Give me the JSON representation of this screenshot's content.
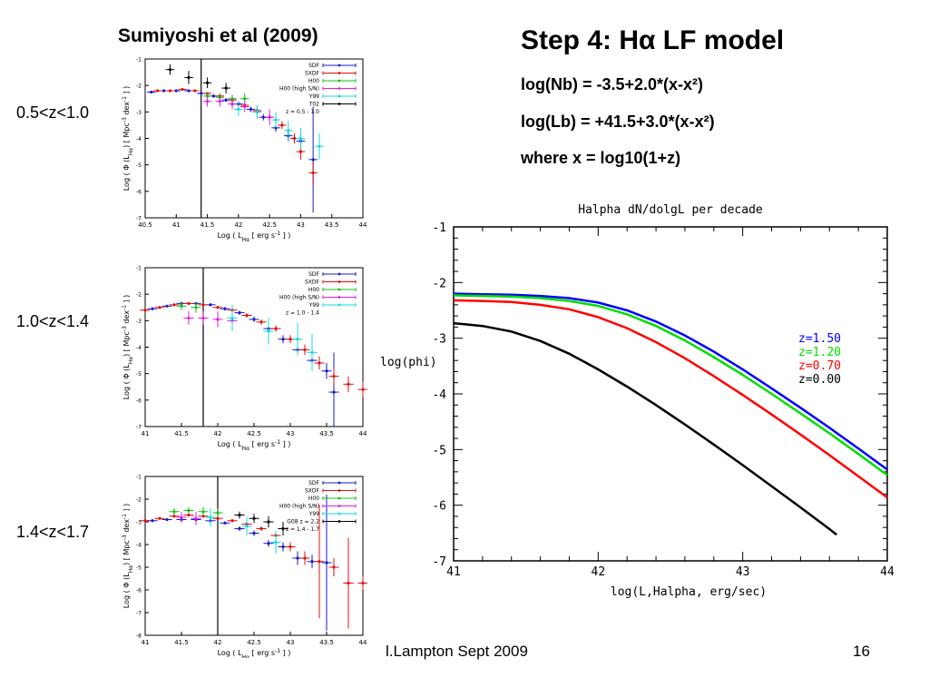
{
  "slide": {
    "left_title": "Sumiyoshi et al (2009)",
    "right_title": "Step 4: Hα LF model",
    "equations": [
      "log(Nb) = -3.5+2.0*(x-x²)",
      "log(Lb) = +41.5+3.0*(x-x²)",
      "where x = log10(1+z)"
    ],
    "z_labels": [
      "0.5<z<1.0",
      "1.0<z<1.4",
      "1.4<z<1.7"
    ],
    "footer_left": "l.Lampton Sept 2009",
    "footer_right": "16"
  },
  "chart_data": [
    {
      "type": "scatter",
      "xlabel": "Log ( L_Hα [ erg s^-1 ] )",
      "ylabel": "Log ( Φ (L_Hα) [ Mpc^-3 dex^-1 ] )",
      "xlim": [
        40.5,
        44
      ],
      "ylim": [
        -7,
        -1
      ],
      "xticks": [
        "40.5",
        "41",
        "41.5",
        "42",
        "42.5",
        "43",
        "43.5",
        "44"
      ],
      "yticks": [
        "-1",
        "-2",
        "-3",
        "-4",
        "-5",
        "-6",
        "-7"
      ],
      "cut_x": 41.4,
      "legend": [
        "SDF",
        "SXDF",
        "H00",
        "H00 (high S/N)",
        "Y99",
        "T02",
        "z = 0.5 - 1.0"
      ],
      "colors": {
        "SDF": "#1a1acc",
        "SXDF": "#e01010",
        "H00": "#18c018",
        "H00 (high S/N)": "#e020e0",
        "Y99": "#18d8e0",
        "T02": "#000000"
      },
      "series": [
        {
          "name": "SDF",
          "x": [
            40.6,
            40.8,
            41.0,
            41.2,
            41.4,
            41.6,
            41.8,
            42.0,
            42.2,
            42.4,
            42.6,
            42.8,
            43.0,
            43.2
          ],
          "y": [
            -2.25,
            -2.2,
            -2.2,
            -2.2,
            -2.3,
            -2.4,
            -2.55,
            -2.7,
            -2.9,
            -3.2,
            -3.6,
            -3.9,
            -4.1,
            -4.8
          ],
          "err": [
            0.05,
            0.05,
            0.05,
            0.05,
            0.05,
            0.06,
            0.07,
            0.08,
            0.1,
            0.12,
            0.15,
            0.2,
            0.25,
            2.0
          ]
        },
        {
          "name": "SXDF",
          "x": [
            40.7,
            40.9,
            41.1,
            41.3,
            41.5,
            41.7,
            41.9,
            42.1,
            42.3,
            42.5,
            42.7,
            42.9,
            43.0,
            43.2
          ],
          "y": [
            -2.2,
            -2.2,
            -2.15,
            -2.2,
            -2.3,
            -2.4,
            -2.55,
            -2.75,
            -2.95,
            -3.2,
            -3.5,
            -4.0,
            -4.5,
            -5.3
          ],
          "err": [
            0.05,
            0.05,
            0.05,
            0.05,
            0.05,
            0.06,
            0.07,
            0.08,
            0.1,
            0.12,
            0.15,
            0.2,
            0.3,
            0.4
          ]
        },
        {
          "name": "H00",
          "x": [
            41.5,
            41.7,
            41.9,
            42.1
          ],
          "y": [
            -2.4,
            -2.45,
            -2.5,
            -2.5
          ],
          "err": [
            0.15,
            0.15,
            0.15,
            0.2
          ]
        },
        {
          "name": "H00 (high S/N)",
          "x": [
            41.5,
            41.7,
            41.9,
            42.1,
            42.3,
            42.5
          ],
          "y": [
            -2.6,
            -2.6,
            -2.7,
            -2.8,
            -3.0,
            -3.2
          ],
          "err": [
            0.2,
            0.2,
            0.2,
            0.2,
            0.25,
            0.3
          ]
        },
        {
          "name": "Y99",
          "x": [
            42.0,
            42.3,
            42.6,
            42.8,
            43.0,
            43.3
          ],
          "y": [
            -2.9,
            -3.0,
            -3.3,
            -3.7,
            -4.0,
            -4.3
          ],
          "err": [
            0.25,
            0.25,
            0.3,
            0.35,
            0.4,
            0.5
          ]
        },
        {
          "name": "T02",
          "x": [
            40.9,
            41.2,
            41.5,
            41.8
          ],
          "y": [
            -1.4,
            -1.7,
            -1.9,
            -2.1
          ],
          "err": [
            0.2,
            0.25,
            0.2,
            0.2
          ]
        }
      ]
    },
    {
      "type": "scatter",
      "xlabel": "Log ( L_Hα [ erg s^-1 ] )",
      "ylabel": "Log ( Φ (L_Hα) [ Mpc^-3 dex^-1 ] )",
      "xlim": [
        41,
        44
      ],
      "ylim": [
        -7,
        -1
      ],
      "xticks": [
        "41",
        "41.5",
        "42",
        "42.5",
        "43",
        "43.5",
        "44"
      ],
      "yticks": [
        "-1",
        "-2",
        "-3",
        "-4",
        "-5",
        "-6",
        "-7"
      ],
      "cut_x": 41.8,
      "legend": [
        "SDF",
        "SXDF",
        "H00",
        "H00 (high S/N)",
        "Y99",
        "z = 1.0 - 1.4"
      ],
      "colors": {
        "SDF": "#1a1acc",
        "SXDF": "#e01010",
        "H00": "#18c018",
        "H00 (high S/N)": "#e020e0",
        "Y99": "#18d8e0"
      },
      "series": [
        {
          "name": "SDF",
          "x": [
            41.1,
            41.3,
            41.5,
            41.7,
            41.9,
            42.1,
            42.3,
            42.5,
            42.7,
            42.9,
            43.1,
            43.3,
            43.5,
            43.6
          ],
          "y": [
            -2.55,
            -2.45,
            -2.35,
            -2.35,
            -2.4,
            -2.55,
            -2.7,
            -2.95,
            -3.3,
            -3.7,
            -4.1,
            -4.5,
            -4.9,
            -5.7
          ],
          "err": [
            0.05,
            0.05,
            0.05,
            0.05,
            0.06,
            0.07,
            0.08,
            0.1,
            0.12,
            0.15,
            0.2,
            0.25,
            0.3,
            1.5
          ]
        },
        {
          "name": "SXDF",
          "x": [
            41.0,
            41.2,
            41.4,
            41.6,
            41.8,
            42.0,
            42.2,
            42.4,
            42.6,
            42.8,
            43.0,
            43.2,
            43.4,
            43.6,
            43.8,
            44.0
          ],
          "y": [
            -2.6,
            -2.5,
            -2.4,
            -2.35,
            -2.4,
            -2.5,
            -2.6,
            -2.8,
            -3.05,
            -3.3,
            -3.7,
            -4.1,
            -4.6,
            -5.1,
            -5.4,
            -5.6
          ],
          "err": [
            0.05,
            0.05,
            0.05,
            0.05,
            0.05,
            0.06,
            0.07,
            0.08,
            0.1,
            0.12,
            0.15,
            0.2,
            0.25,
            0.3,
            0.3,
            0.3
          ]
        },
        {
          "name": "H00",
          "x": [
            41.5,
            41.7
          ],
          "y": [
            -2.45,
            -2.5
          ],
          "err": [
            0.15,
            0.2
          ]
        },
        {
          "name": "H00 (high S/N)",
          "x": [
            41.6,
            41.8,
            42.0,
            42.2
          ],
          "y": [
            -2.9,
            -2.9,
            -2.95,
            -3.0
          ],
          "err": [
            0.25,
            0.25,
            0.3,
            0.3
          ]
        },
        {
          "name": "Y99",
          "x": [
            42.2,
            42.7,
            43.1,
            43.3
          ],
          "y": [
            -2.9,
            -3.4,
            -3.7,
            -4.2
          ],
          "err": [
            0.5,
            0.5,
            0.6,
            0.7
          ]
        }
      ]
    },
    {
      "type": "scatter",
      "xlabel": "Log ( L_Hα [ erg s^-1 ] )",
      "ylabel": "Log ( Φ (L_Hα) [ Mpc^-3 dex^-1 ] )",
      "xlim": [
        41,
        44
      ],
      "ylim": [
        -8,
        -1
      ],
      "xticks": [
        "41",
        "41.5",
        "42",
        "42.5",
        "43",
        "43.5",
        "44"
      ],
      "yticks": [
        "-1",
        "-2",
        "-3",
        "-4",
        "-5",
        "-6",
        "-7",
        "-8"
      ],
      "cut_x": 42.0,
      "legend": [
        "SDF",
        "SXDF",
        "H00",
        "H00 (high S/N)",
        "Y99",
        "G08 z = 2.2",
        "z = 1.4 - 1.7"
      ],
      "colors": {
        "SDF": "#1a1acc",
        "SXDF": "#e01010",
        "H00": "#18c018",
        "H00 (high S/N)": "#e020e0",
        "Y99": "#18d8e0",
        "G08 z = 2.2": "#000000"
      },
      "series": [
        {
          "name": "SDF",
          "x": [
            41.1,
            41.3,
            41.5,
            41.7,
            41.9,
            42.1,
            42.3,
            42.5,
            42.7,
            42.9,
            43.1,
            43.3,
            43.5
          ],
          "y": [
            -2.95,
            -2.9,
            -2.9,
            -2.9,
            -2.95,
            -3.05,
            -3.3,
            -3.5,
            -3.95,
            -4.1,
            -4.6,
            -4.75,
            -4.8
          ],
          "err": [
            0.05,
            0.05,
            0.05,
            0.05,
            0.06,
            0.07,
            0.1,
            0.12,
            0.15,
            0.2,
            0.3,
            0.3,
            3.0
          ]
        },
        {
          "name": "SXDF",
          "x": [
            41.0,
            41.2,
            41.4,
            41.6,
            41.8,
            42.0,
            42.2,
            42.4,
            42.6,
            42.8,
            43.0,
            43.2,
            43.4,
            43.6,
            43.8,
            44.0
          ],
          "y": [
            -2.95,
            -2.85,
            -2.75,
            -2.7,
            -2.75,
            -2.85,
            -2.95,
            -3.1,
            -3.3,
            -3.6,
            -4.1,
            -4.6,
            -4.75,
            -5.0,
            -5.7,
            -5.7
          ],
          "err": [
            0.05,
            0.05,
            0.05,
            0.05,
            0.05,
            0.06,
            0.07,
            0.08,
            0.1,
            0.15,
            0.2,
            0.3,
            2.5,
            0.4,
            2.0,
            0.3
          ]
        },
        {
          "name": "H00",
          "x": [
            41.4,
            41.6,
            41.8,
            42.0
          ],
          "y": [
            -2.55,
            -2.5,
            -2.55,
            -2.6
          ],
          "err": [
            0.15,
            0.15,
            0.2,
            0.2
          ]
        },
        {
          "name": "H00 (high S/N)",
          "x": [
            41.5,
            41.7
          ],
          "y": [
            -2.8,
            -2.85
          ],
          "err": [
            0.25,
            0.3
          ]
        },
        {
          "name": "Y99",
          "x": [
            41.9,
            42.4,
            42.8
          ],
          "y": [
            -2.8,
            -3.2,
            -3.9
          ],
          "err": [
            0.4,
            0.4,
            0.5
          ]
        },
        {
          "name": "G08 z = 2.2",
          "x": [
            42.3,
            42.5,
            42.7,
            42.9
          ],
          "y": [
            -2.7,
            -2.85,
            -3.0,
            -3.3
          ],
          "err": [
            0.15,
            0.2,
            0.25,
            0.3
          ]
        }
      ]
    },
    {
      "type": "line",
      "title": "Halpha dN/dolgL per decade",
      "xlabel": "log(L,Halpha, erg/sec)",
      "ylabel": "log(phi)",
      "xlim": [
        41,
        44
      ],
      "ylim": [
        -7,
        -1
      ],
      "xticks": [
        "41",
        "42",
        "43",
        "44"
      ],
      "yticks": [
        "-1",
        "-2",
        "-3",
        "-4",
        "-5",
        "-6",
        "-7"
      ],
      "series": [
        {
          "name": "z=1.50",
          "color": "#0000ff",
          "x": [
            41.0,
            41.2,
            41.4,
            41.6,
            41.8,
            42.0,
            42.2,
            42.4,
            42.6,
            42.8,
            43.0,
            43.2,
            43.4,
            43.6,
            43.8,
            44.0
          ],
          "y": [
            -2.2,
            -2.21,
            -2.22,
            -2.24,
            -2.28,
            -2.36,
            -2.5,
            -2.7,
            -2.95,
            -3.24,
            -3.56,
            -3.9,
            -4.25,
            -4.61,
            -4.98,
            -5.36
          ]
        },
        {
          "name": "z=1.20",
          "color": "#00dd00",
          "x": [
            41.0,
            41.2,
            41.4,
            41.6,
            41.8,
            42.0,
            42.2,
            42.4,
            42.6,
            42.8,
            43.0,
            43.2,
            43.4,
            43.6,
            43.8,
            44.0
          ],
          "y": [
            -2.23,
            -2.24,
            -2.25,
            -2.28,
            -2.33,
            -2.42,
            -2.57,
            -2.78,
            -3.04,
            -3.34,
            -3.66,
            -4.0,
            -4.35,
            -4.71,
            -5.08,
            -5.46
          ]
        },
        {
          "name": "z=0.70",
          "color": "#ff0000",
          "x": [
            41.0,
            41.2,
            41.4,
            41.6,
            41.8,
            42.0,
            42.2,
            42.4,
            42.6,
            42.8,
            43.0,
            43.2,
            43.4,
            43.6,
            43.8,
            44.0
          ],
          "y": [
            -2.32,
            -2.33,
            -2.35,
            -2.4,
            -2.48,
            -2.62,
            -2.82,
            -3.07,
            -3.36,
            -3.68,
            -4.02,
            -4.37,
            -4.73,
            -5.1,
            -5.48,
            -5.86
          ]
        },
        {
          "name": "z=0.00",
          "color": "#000000",
          "x": [
            41.0,
            41.2,
            41.4,
            41.6,
            41.8,
            42.0,
            42.2,
            42.4,
            42.6,
            42.8,
            43.0,
            43.2,
            43.4,
            43.6,
            43.65
          ],
          "y": [
            -2.73,
            -2.78,
            -2.88,
            -3.05,
            -3.28,
            -3.56,
            -3.87,
            -4.2,
            -4.55,
            -4.91,
            -5.28,
            -5.66,
            -6.04,
            -6.43,
            -6.53
          ]
        }
      ]
    }
  ]
}
